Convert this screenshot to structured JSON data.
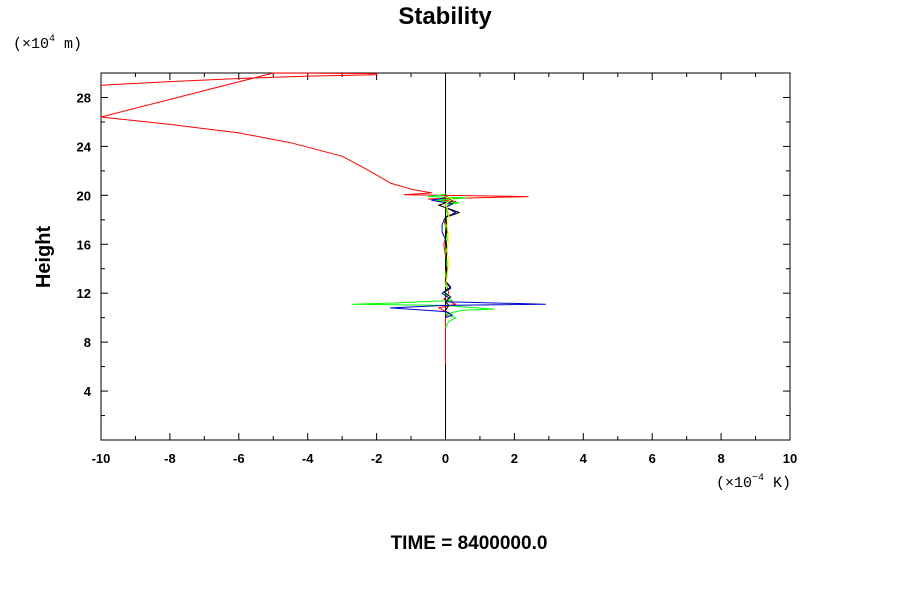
{
  "chart_data": {
    "type": "line",
    "title": "Stability",
    "ylabel": "Height",
    "xlabel": "",
    "x_unit": {
      "base": "(×10",
      "exp": "−4",
      "suffix": " K)"
    },
    "y_unit": {
      "base": "(×10",
      "exp": "4",
      "suffix": " m)"
    },
    "xlim": [
      -10,
      10
    ],
    "ylim": [
      0,
      30
    ],
    "xticks": [
      -10,
      -8,
      -6,
      -4,
      -2,
      0,
      2,
      4,
      6,
      8,
      10
    ],
    "yticks": [
      4,
      8,
      12,
      16,
      20,
      24,
      28
    ],
    "zero_line": true,
    "grid": false,
    "legend": "none",
    "footer": "TIME = 8400000.0",
    "series": [
      {
        "color": "#ff0000",
        "points": [
          [
            -10.0,
            29.0
          ],
          [
            -8.0,
            29.3
          ],
          [
            -6.0,
            29.55
          ],
          [
            -4.0,
            29.75
          ],
          [
            -2.0,
            29.85
          ],
          [
            -2.0,
            29.95
          ],
          [
            -3.0,
            29.97
          ],
          [
            -4.0,
            29.99
          ],
          [
            -5.0,
            30.0
          ],
          [
            -10.0,
            26.4
          ],
          [
            -8.0,
            25.8
          ],
          [
            -6.0,
            25.1
          ],
          [
            -4.5,
            24.3
          ],
          [
            -3.0,
            23.2
          ],
          [
            -2.2,
            22.0
          ],
          [
            -1.6,
            21.0
          ],
          [
            -1.0,
            20.5
          ],
          [
            -0.4,
            20.2
          ],
          [
            -1.2,
            20.05
          ],
          [
            2.4,
            19.9
          ],
          [
            -0.5,
            19.7
          ],
          [
            0.3,
            19.5
          ],
          [
            0.0,
            19.0
          ],
          [
            0.1,
            18.5
          ],
          [
            -0.05,
            18.0
          ],
          [
            0.05,
            17.0
          ],
          [
            -0.05,
            16.0
          ],
          [
            0.0,
            15.0
          ],
          [
            0.05,
            14.0
          ],
          [
            0.0,
            13.0
          ],
          [
            0.1,
            12.0
          ],
          [
            -0.05,
            11.5
          ],
          [
            0.3,
            11.1
          ],
          [
            -0.2,
            10.8
          ],
          [
            0.1,
            10.4
          ],
          [
            0.0,
            10.0
          ],
          [
            0.0,
            9.0
          ],
          [
            0.0,
            8.0
          ],
          [
            0.0,
            7.0
          ],
          [
            0.0,
            6.2
          ]
        ]
      },
      {
        "color": "#00ff00",
        "points": [
          [
            0.0,
            20.1
          ],
          [
            -0.5,
            19.9
          ],
          [
            0.6,
            19.8
          ],
          [
            -0.3,
            19.6
          ],
          [
            0.4,
            19.4
          ],
          [
            0.0,
            19.2
          ],
          [
            0.05,
            18.5
          ],
          [
            0.0,
            17.5
          ],
          [
            0.05,
            16.5
          ],
          [
            0.0,
            15.5
          ],
          [
            0.05,
            14.5
          ],
          [
            0.0,
            13.5
          ],
          [
            0.05,
            12.5
          ],
          [
            0.0,
            12.0
          ],
          [
            0.1,
            11.6
          ],
          [
            0.2,
            11.4
          ],
          [
            -1.5,
            11.2
          ],
          [
            -2.7,
            11.1
          ],
          [
            0.0,
            11.0
          ],
          [
            1.4,
            10.7
          ],
          [
            0.5,
            10.6
          ],
          [
            0.0,
            10.3
          ],
          [
            0.3,
            10.0
          ],
          [
            0.1,
            9.7
          ],
          [
            0.0,
            9.2
          ]
        ]
      },
      {
        "color": "#0000cc",
        "points": [
          [
            0.0,
            19.8
          ],
          [
            -0.4,
            19.6
          ],
          [
            0.2,
            19.3
          ],
          [
            0.0,
            19.0
          ],
          [
            0.3,
            18.6
          ],
          [
            0.0,
            18.2
          ],
          [
            -0.1,
            17.6
          ],
          [
            -0.1,
            17.0
          ],
          [
            0.0,
            16.4
          ],
          [
            0.05,
            15.5
          ],
          [
            0.0,
            14.5
          ],
          [
            0.05,
            13.5
          ],
          [
            0.0,
            13.0
          ],
          [
            0.15,
            12.4
          ],
          [
            -0.1,
            12.0
          ],
          [
            0.1,
            11.6
          ],
          [
            0.0,
            11.3
          ],
          [
            2.9,
            11.1
          ],
          [
            0.0,
            11.0
          ],
          [
            -1.6,
            10.8
          ],
          [
            0.0,
            10.5
          ],
          [
            0.2,
            10.2
          ],
          [
            0.0,
            10.0
          ]
        ]
      },
      {
        "color": "#000000",
        "points": [
          [
            0.0,
            20.0
          ],
          [
            0.2,
            19.5
          ],
          [
            -0.2,
            19.2
          ],
          [
            0.4,
            18.6
          ],
          [
            0.0,
            18.2
          ],
          [
            0.05,
            17.5
          ],
          [
            0.0,
            16.5
          ],
          [
            0.05,
            15.5
          ],
          [
            0.0,
            14.5
          ],
          [
            0.05,
            13.5
          ],
          [
            0.0,
            13.0
          ],
          [
            0.15,
            12.5
          ],
          [
            -0.05,
            12.1
          ],
          [
            0.15,
            11.7
          ],
          [
            0.0,
            11.3
          ],
          [
            0.1,
            11.0
          ],
          [
            0.0,
            10.6
          ]
        ]
      },
      {
        "color": "#ffff00",
        "points": [
          [
            0.0,
            19.9
          ],
          [
            0.2,
            19.7
          ],
          [
            0.0,
            19.3
          ],
          [
            0.1,
            18.5
          ],
          [
            0.05,
            17.5
          ],
          [
            0.1,
            16.5
          ],
          [
            0.05,
            15.5
          ],
          [
            0.1,
            14.5
          ],
          [
            0.05,
            13.5
          ],
          [
            0.0,
            12.5
          ]
        ]
      }
    ]
  }
}
